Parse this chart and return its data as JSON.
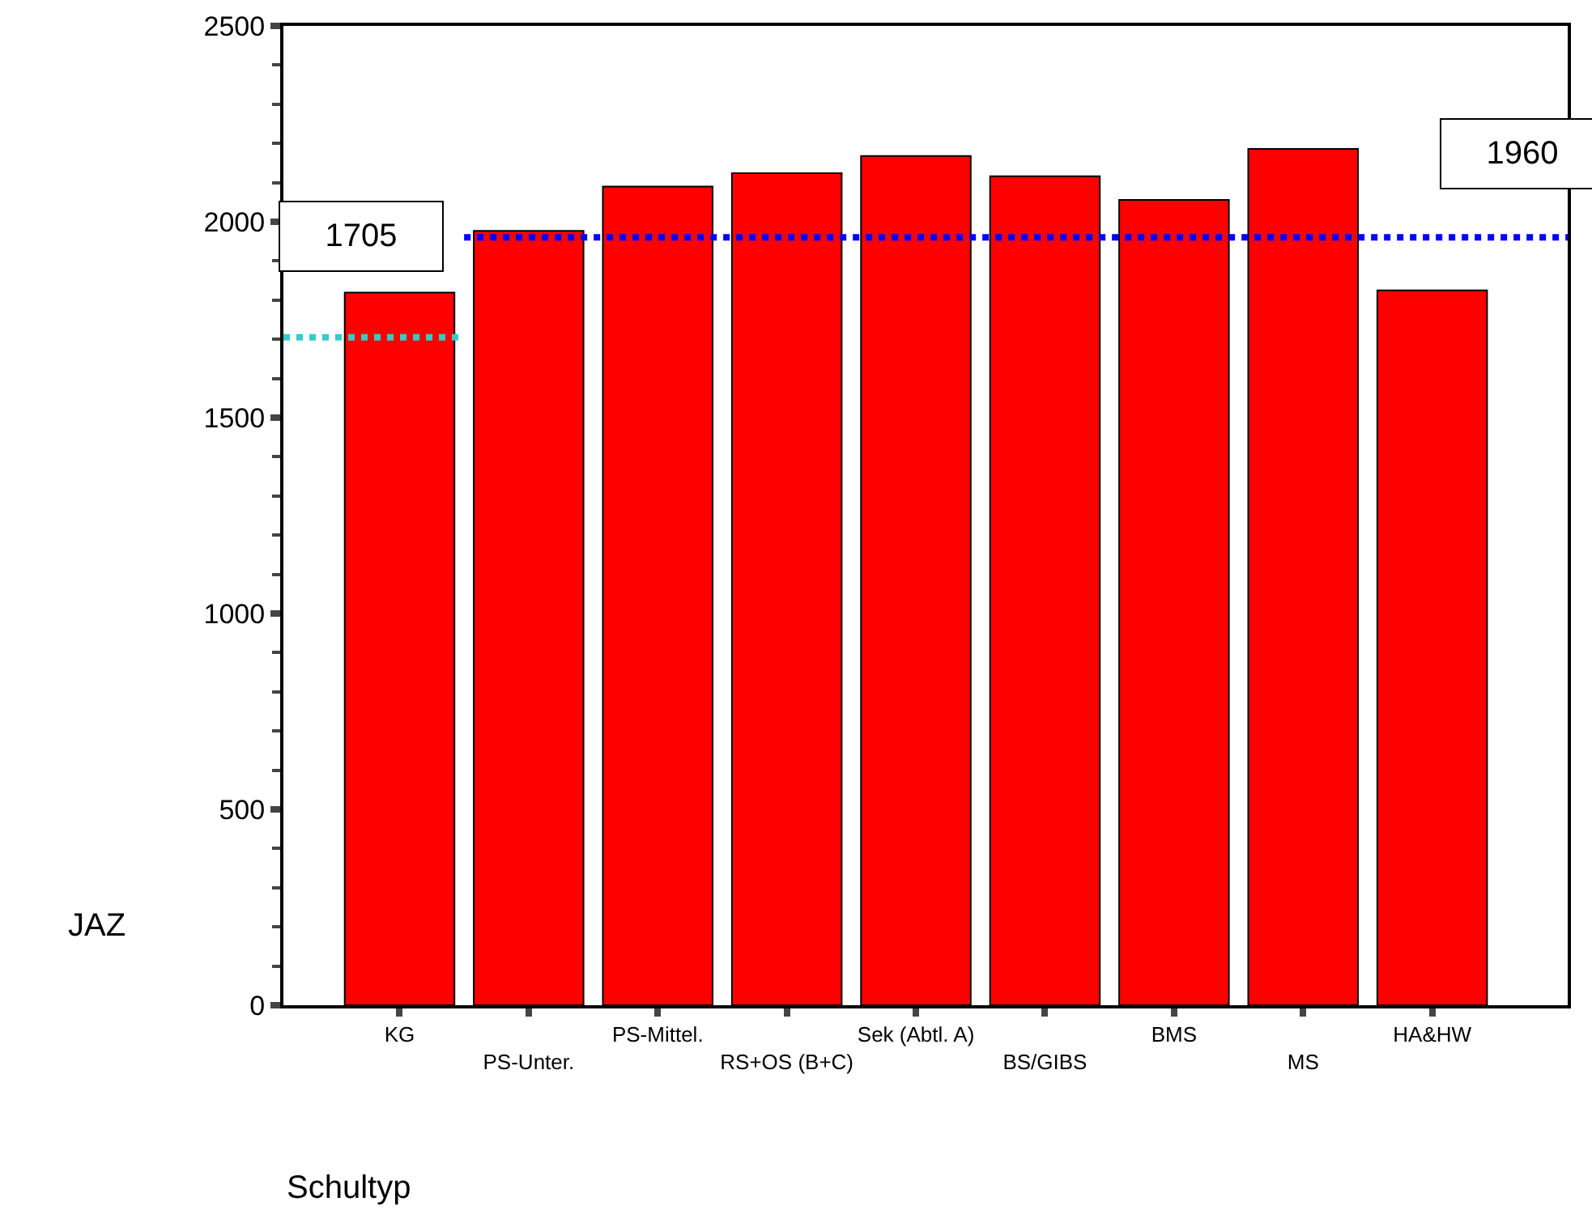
{
  "chart_data": {
    "type": "bar",
    "xlabel": "Schultyp",
    "ylabel": "JAZ",
    "categories": [
      "KG",
      "PS-Unter.",
      "PS-Mittel.",
      "RS+OS (B+C)",
      "Sek (Abtl. A)",
      "BS/GIBS",
      "BMS",
      "MS",
      "HA&HW"
    ],
    "values": [
      1819,
      1977,
      2090,
      2124,
      2168,
      2116,
      2056,
      2186,
      1825
    ],
    "color": "#ff0000",
    "ylim": [
      0,
      2500
    ],
    "yticks": [
      0,
      500,
      1000,
      1500,
      2000,
      2500
    ],
    "ref_lines": [
      {
        "axis": "y",
        "value": 1705,
        "label": "1705",
        "color": "#33cccc",
        "line_style": "dotted"
      },
      {
        "axis": "y",
        "value": 1960,
        "label": "1960",
        "color": "#0000ff",
        "line_style": "dotted"
      }
    ]
  }
}
